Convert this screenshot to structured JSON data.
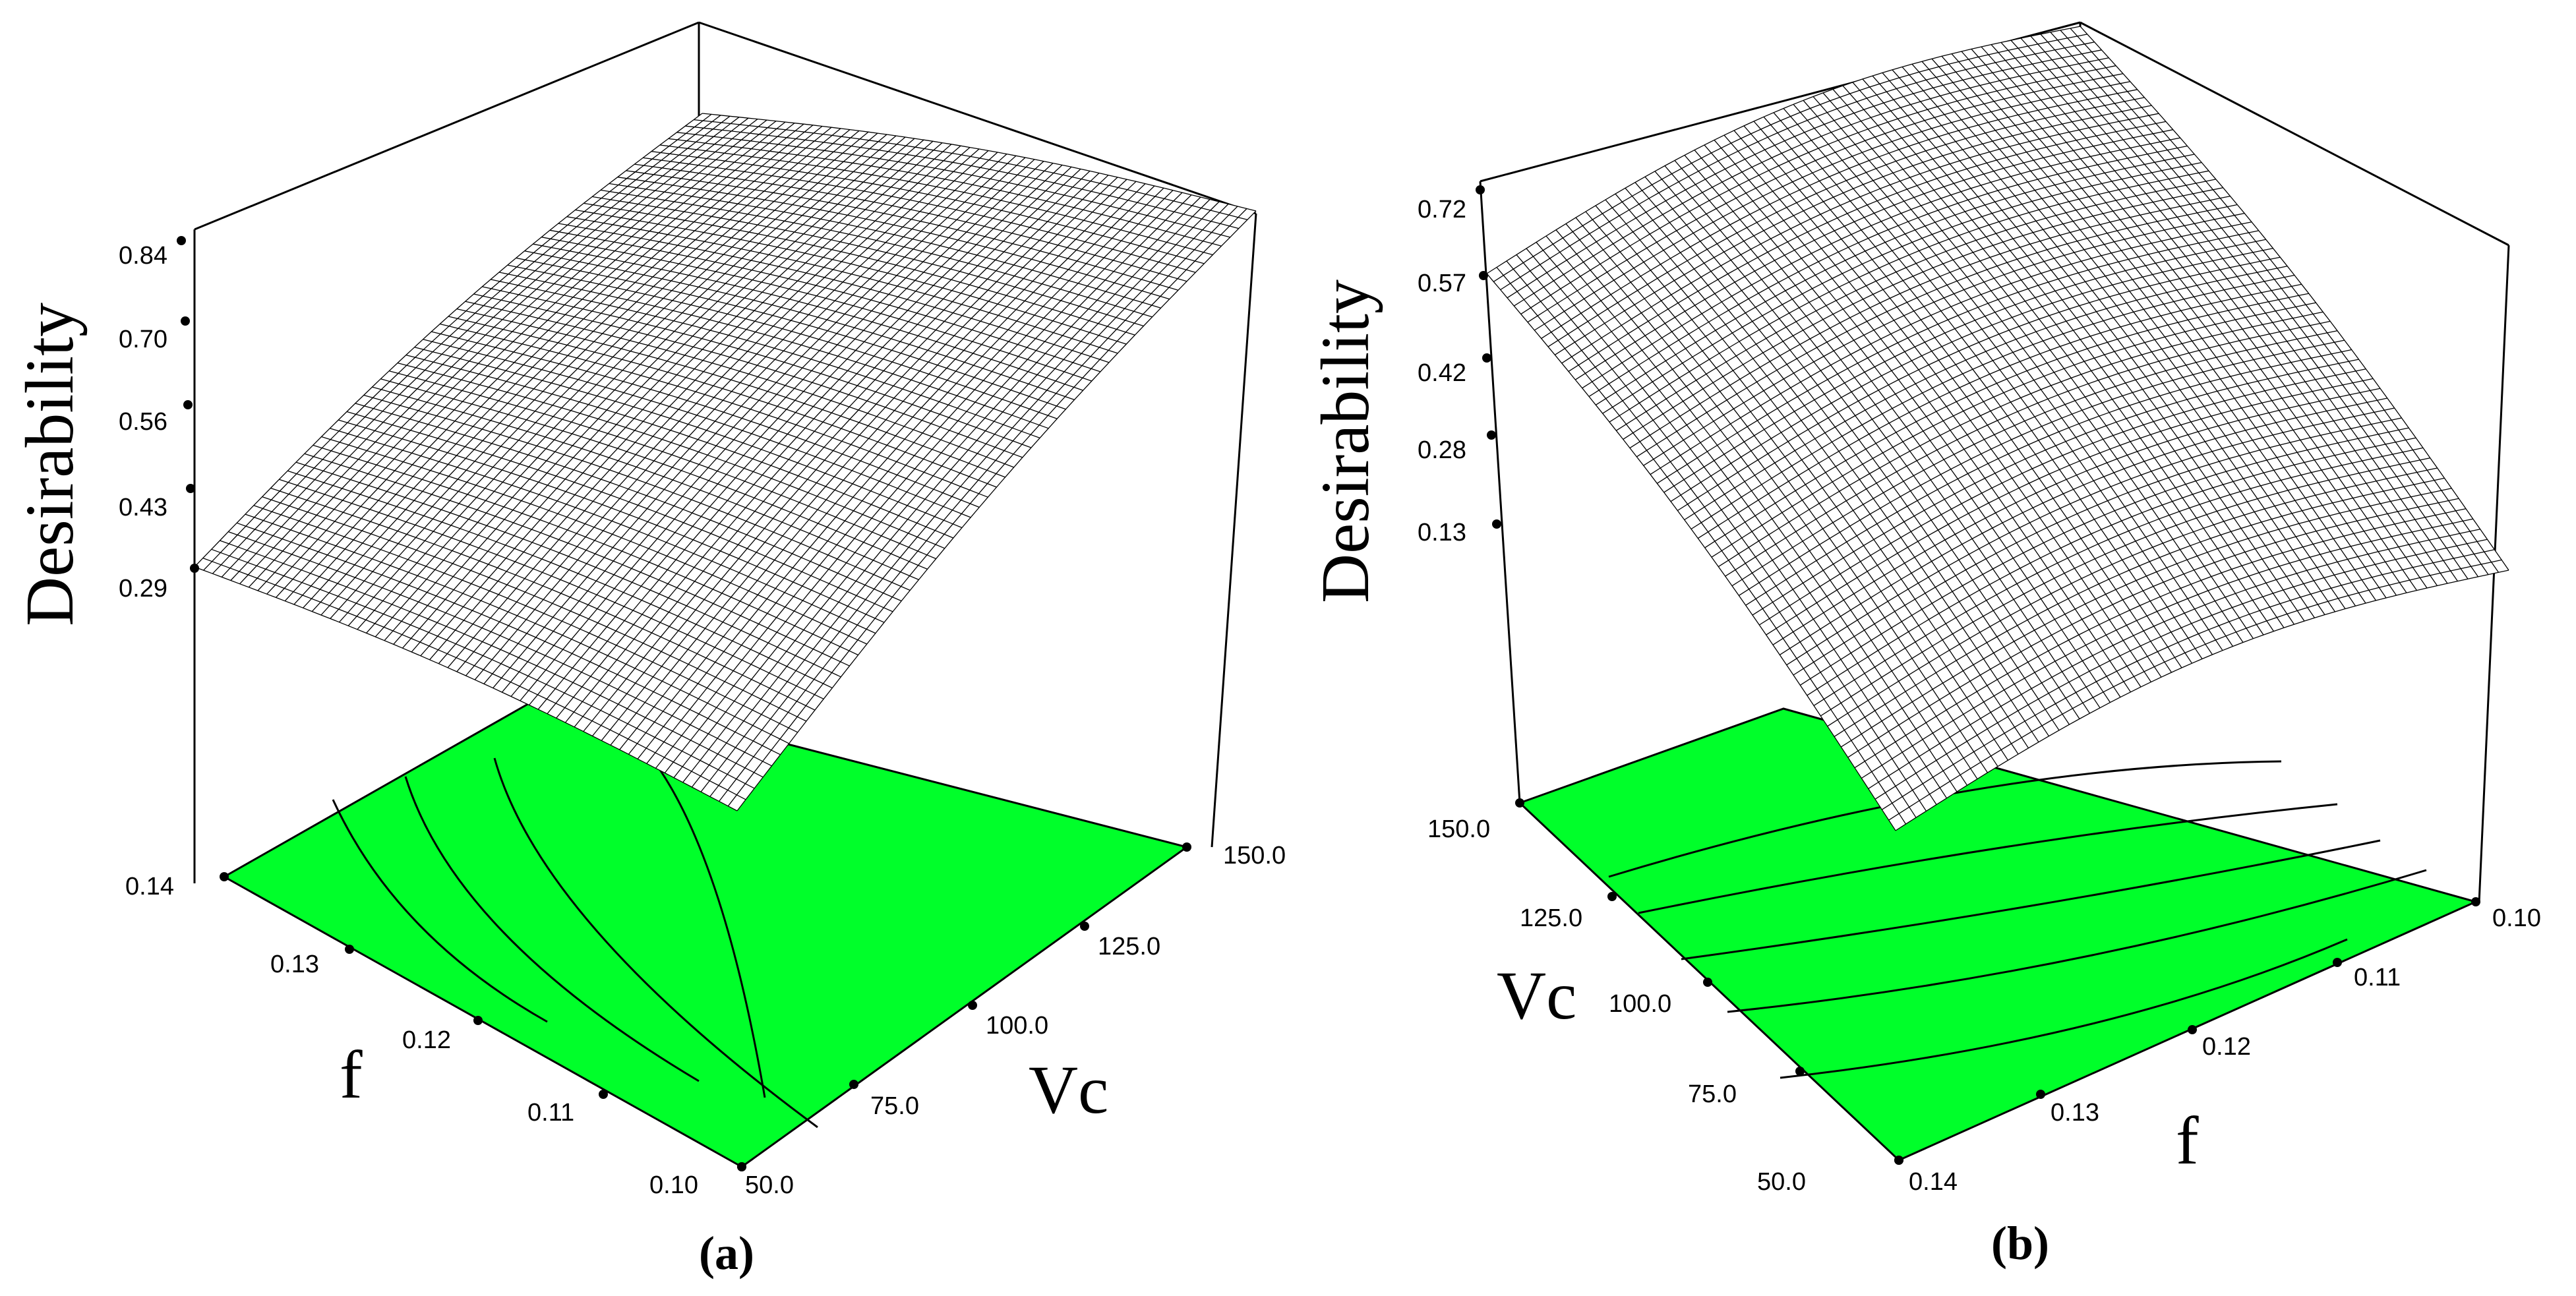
{
  "chart_data": [
    {
      "type": "surface3d",
      "panel_label": "(a)",
      "zlabel": "Desirability",
      "xlabel": "Vc",
      "ylabel": "f",
      "x_ticks": [
        "50.0",
        "75.0",
        "100.0",
        "125.0",
        "150.0"
      ],
      "y_ticks": [
        "0.10",
        "0.11",
        "0.12",
        "0.13",
        "0.14"
      ],
      "z_ticks": [
        "0.29",
        "0.43",
        "0.56",
        "0.70",
        "0.84"
      ],
      "xlim": [
        50,
        150
      ],
      "ylim": [
        0.1,
        0.14
      ],
      "zlim": [
        0.29,
        0.84
      ],
      "surface_samples": [
        {
          "Vc": 50,
          "f": 0.1,
          "desirability": 0.05
        },
        {
          "Vc": 50,
          "f": 0.14,
          "desirability": 0.29
        },
        {
          "Vc": 150,
          "f": 0.1,
          "desirability": 0.75
        },
        {
          "Vc": 150,
          "f": 0.14,
          "desirability": 0.84
        }
      ],
      "floor_color": "#00ff2a",
      "floor_contours": 4
    },
    {
      "type": "surface3d",
      "panel_label": "(b)",
      "zlabel": "Desirability",
      "xlabel": "Vc",
      "ylabel": "f",
      "x_ticks": [
        "50.0",
        "75.0",
        "100.0",
        "125.0",
        "150.0"
      ],
      "y_ticks": [
        "0.10",
        "0.11",
        "0.12",
        "0.13",
        "0.14"
      ],
      "z_ticks": [
        "0.13",
        "0.28",
        "0.42",
        "0.57",
        "0.72"
      ],
      "xlim": [
        50,
        150
      ],
      "ylim": [
        0.1,
        0.14
      ],
      "zlim": [
        0.13,
        0.72
      ],
      "surface_samples": [
        {
          "Vc": 50,
          "f": 0.14,
          "desirability": 0.0
        },
        {
          "Vc": 150,
          "f": 0.14,
          "desirability": 0.57
        },
        {
          "Vc": 50,
          "f": 0.1,
          "desirability": 0.08
        },
        {
          "Vc": 150,
          "f": 0.1,
          "desirability": 0.72
        }
      ],
      "floor_color": "#00ff2a",
      "floor_contours": 5
    }
  ]
}
